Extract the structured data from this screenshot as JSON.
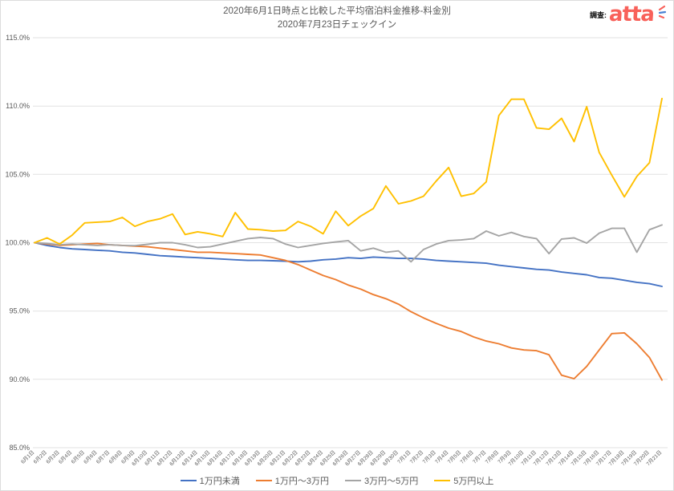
{
  "header": {
    "survey_label": "調査:",
    "logo_text": "atta",
    "logo_color": "#f8615a",
    "sparkle_blue": "#4a83d4"
  },
  "chart_data": {
    "type": "line",
    "title": "2020年6月1日時点と比較した平均宿泊料金推移-料金別",
    "subtitle": "2020年7月23日チェックイン",
    "xlabel": "",
    "ylabel": "",
    "ylim": [
      85,
      115
    ],
    "ytick_step": 5,
    "yticks": [
      "85.0%",
      "90.0%",
      "95.0%",
      "100.0%",
      "105.0%",
      "110.0%",
      "115.0%"
    ],
    "grid": "horizontal",
    "gridline_color": "#e2e2e2",
    "legend_position": "bottom",
    "categories": [
      "6月1日",
      "6月2日",
      "6月3日",
      "6月4日",
      "6月5日",
      "6月6日",
      "6月7日",
      "6月8日",
      "6月9日",
      "6月10日",
      "6月11日",
      "6月12日",
      "6月13日",
      "6月14日",
      "6月15日",
      "6月16日",
      "6月17日",
      "6月18日",
      "6月19日",
      "6月20日",
      "6月21日",
      "6月22日",
      "6月23日",
      "6月24日",
      "6月25日",
      "6月26日",
      "6月27日",
      "6月28日",
      "6月29日",
      "6月30日",
      "7月1日",
      "7月2日",
      "7月3日",
      "7月4日",
      "7月5日",
      "7月6日",
      "7月7日",
      "7月8日",
      "7月9日",
      "7月10日",
      "7月11日",
      "7月12日",
      "7月13日",
      "7月14日",
      "7月15日",
      "7月16日",
      "7月17日",
      "7月18日",
      "7月19日",
      "7月20日",
      "7月21日"
    ],
    "series": [
      {
        "name": "1万円未満",
        "color": "#4472C4",
        "values": [
          100,
          99.8,
          99.65,
          99.55,
          99.5,
          99.45,
          99.4,
          99.3,
          99.25,
          99.15,
          99.05,
          99,
          98.95,
          98.9,
          98.85,
          98.8,
          98.75,
          98.7,
          98.7,
          98.68,
          98.65,
          98.6,
          98.65,
          98.75,
          98.8,
          98.9,
          98.85,
          98.95,
          98.9,
          98.85,
          98.85,
          98.8,
          98.7,
          98.65,
          98.6,
          98.55,
          98.5,
          98.35,
          98.25,
          98.15,
          98.05,
          98,
          97.85,
          97.75,
          97.65,
          97.45,
          97.4,
          97.25,
          97.1,
          97,
          96.8
        ]
      },
      {
        "name": "1万円〜3万円",
        "color": "#ED7D31",
        "values": [
          100,
          99.9,
          99.8,
          99.85,
          99.9,
          99.95,
          99.85,
          99.8,
          99.75,
          99.7,
          99.6,
          99.5,
          99.4,
          99.3,
          99.3,
          99.25,
          99.2,
          99.15,
          99.1,
          98.9,
          98.7,
          98.4,
          98,
          97.6,
          97.3,
          96.9,
          96.6,
          96.2,
          95.9,
          95.5,
          94.95,
          94.5,
          94.1,
          93.75,
          93.5,
          93.1,
          92.8,
          92.6,
          92.3,
          92.15,
          92.1,
          91.8,
          90.3,
          90.05,
          90.95,
          92.15,
          93.35,
          93.4,
          92.6,
          91.6,
          89.95
        ]
      },
      {
        "name": "3万円〜5万円",
        "color": "#A5A5A5",
        "values": [
          100,
          99.95,
          99.85,
          99.9,
          99.85,
          99.8,
          99.85,
          99.8,
          99.78,
          99.88,
          100,
          100,
          99.85,
          99.65,
          99.7,
          99.9,
          100.1,
          100.3,
          100.38,
          100.3,
          99.9,
          99.65,
          99.8,
          99.95,
          100.05,
          100.15,
          99.4,
          99.6,
          99.3,
          99.4,
          98.6,
          99.5,
          99.9,
          100.15,
          100.2,
          100.3,
          100.85,
          100.5,
          100.75,
          100.45,
          100.3,
          99.2,
          100.27,
          100.35,
          99.97,
          100.7,
          101.05,
          101.05,
          99.3,
          100.95,
          101.3
        ]
      },
      {
        "name": "5万円以上",
        "color": "#FFC000",
        "values": [
          100,
          100.35,
          99.9,
          100.55,
          101.45,
          101.5,
          101.55,
          101.85,
          101.2,
          101.55,
          101.75,
          102.1,
          100.6,
          100.8,
          100.65,
          100.45,
          102.2,
          101,
          100.95,
          100.85,
          100.9,
          101.55,
          101.2,
          100.65,
          102.3,
          101.25,
          101.95,
          102.5,
          104.15,
          102.85,
          103.05,
          103.4,
          104.5,
          105.5,
          103.4,
          103.6,
          104.45,
          109.3,
          110.5,
          110.5,
          108.4,
          108.3,
          109.1,
          107.4,
          109.95,
          106.6,
          104.95,
          103.35,
          104.85,
          105.85,
          110.55
        ]
      }
    ]
  }
}
